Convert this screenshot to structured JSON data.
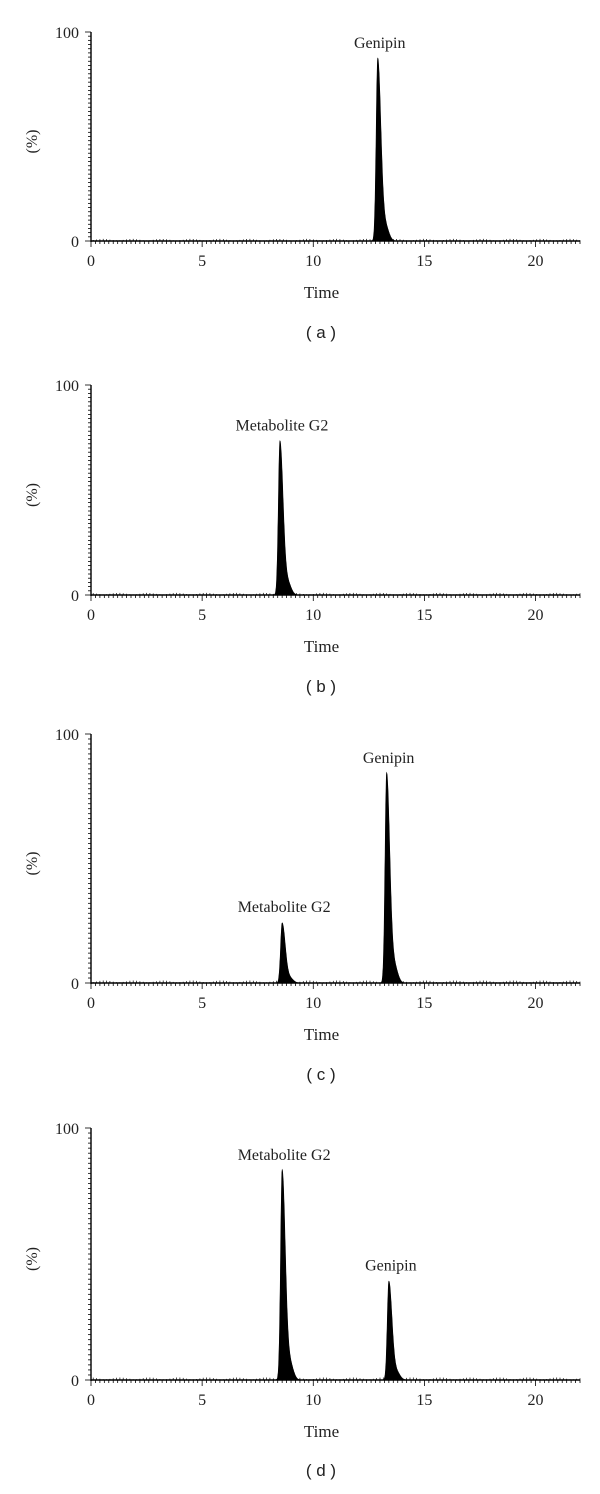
{
  "chart_data": [
    {
      "type": "area",
      "panel_label": "( a )",
      "xlabel": "Time",
      "ylabel": "(%)",
      "xlim": [
        0,
        22
      ],
      "ylim": [
        0,
        100
      ],
      "x_ticks": [
        "0",
        "5",
        "10",
        "15",
        "20"
      ],
      "y_ticks": [
        "0",
        "100"
      ],
      "peaks": [
        {
          "name": "Genipin",
          "time": 12.9,
          "height": 87
        }
      ]
    },
    {
      "type": "area",
      "panel_label": "( b )",
      "xlabel": "Time",
      "ylabel": "(%)",
      "xlim": [
        0,
        22
      ],
      "ylim": [
        0,
        100
      ],
      "x_ticks": [
        "0",
        "5",
        "10",
        "15",
        "20"
      ],
      "y_ticks": [
        "0",
        "100"
      ],
      "peaks": [
        {
          "name": "Metabolite G2",
          "time": 8.5,
          "height": 73
        }
      ]
    },
    {
      "type": "area",
      "panel_label": "( c )",
      "xlabel": "Time",
      "ylabel": "(%)",
      "xlim": [
        0,
        22
      ],
      "ylim": [
        0,
        100
      ],
      "x_ticks": [
        "0",
        "5",
        "10",
        "15",
        "20"
      ],
      "y_ticks": [
        "0",
        "100"
      ],
      "peaks": [
        {
          "name": "Metabolite G2",
          "time": 8.6,
          "height": 24
        },
        {
          "name": "Genipin",
          "time": 13.3,
          "height": 84
        }
      ]
    },
    {
      "type": "area",
      "panel_label": "( d )",
      "xlabel": "Time",
      "ylabel": "(%)",
      "xlim": [
        0,
        22
      ],
      "ylim": [
        0,
        100
      ],
      "x_ticks": [
        "0",
        "5",
        "10",
        "15",
        "20"
      ],
      "y_ticks": [
        "0",
        "100"
      ],
      "peaks": [
        {
          "name": "Metabolite G2",
          "time": 8.6,
          "height": 83
        },
        {
          "name": "Genipin",
          "time": 13.4,
          "height": 39
        }
      ]
    }
  ]
}
